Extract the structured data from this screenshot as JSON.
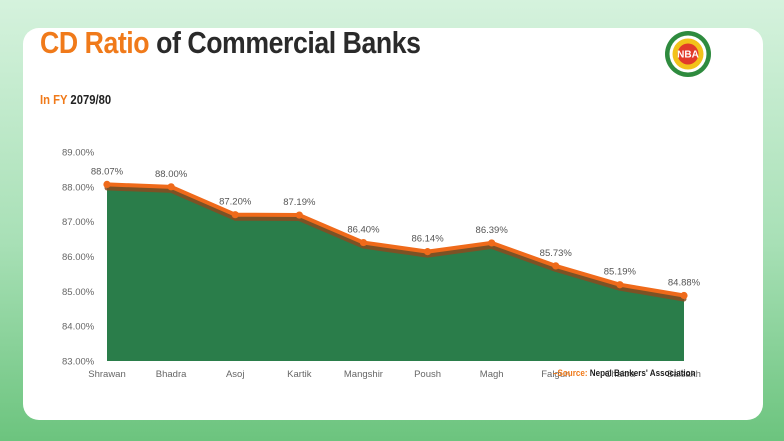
{
  "header": {
    "title_accent": "CD Ratio",
    "title_rest": " of Commercial Banks",
    "subtitle_accent": "In FY",
    "subtitle_rest": " 2079/80",
    "source_label": "–Source:",
    "source_value": "Nepal Bankers' Association"
  },
  "logo": {
    "text": "NBA",
    "colors": {
      "ring": "#2e8b3e",
      "inner": "#f2c21a",
      "center": "#e23a2a"
    }
  },
  "colors": {
    "accent": "#f07a1a",
    "area_fill": "#2a7d4a",
    "line": "#ef6a1a",
    "line_shadow": "#8b4a1e"
  },
  "chart_data": {
    "type": "area",
    "categories": [
      "Shrawan",
      "Bhadra",
      "Asoj",
      "Kartik",
      "Mangshir",
      "Poush",
      "Magh",
      "Falgun",
      "Chaitra",
      "Baisakh"
    ],
    "series": [
      {
        "values": [
          88.07,
          88.0,
          87.2,
          87.19,
          86.4,
          86.14,
          86.39,
          85.73,
          85.19,
          84.88
        ],
        "labels": [
          "88.07%",
          "88.00%",
          "87.20%",
          "87.19%",
          "86.40%",
          "86.14%",
          "86.39%",
          "85.73%",
          "85.19%",
          "84.88%"
        ]
      }
    ],
    "ylim": [
      83,
      89
    ],
    "yticks": [
      "83.00%",
      "84.00%",
      "85.00%",
      "86.00%",
      "87.00%",
      "88.00%",
      "89.00%"
    ],
    "grid": false,
    "legend": "none"
  }
}
